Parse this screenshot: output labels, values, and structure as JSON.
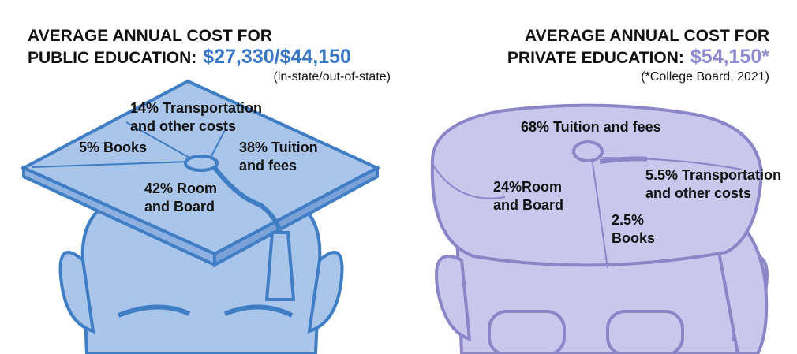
{
  "panels": [
    {
      "title": [
        "AVERAGE ANNUAL COST FOR",
        "PUBLIC EDUCATION:"
      ],
      "cost": "$27,330/$44,150",
      "note": "(in-state/out-of-state)",
      "segments": [
        {
          "lines": [
            "14% Transportation",
            "and other costs"
          ]
        },
        {
          "lines": [
            "5% Books"
          ]
        },
        {
          "lines": [
            "38% Tuition",
            "and fees"
          ]
        },
        {
          "lines": [
            "42% Room",
            "and Board"
          ]
        }
      ]
    },
    {
      "title": [
        "AVERAGE ANNUAL COST FOR",
        "PRIVATE EDUCATION:"
      ],
      "cost": "$54,150*",
      "note": "(*College Board, 2021)",
      "segments": [
        {
          "lines": [
            "68% Tuition and fees"
          ]
        },
        {
          "lines": [
            "24%Room",
            "and Board"
          ]
        },
        {
          "lines": [
            "5.5% Transportation",
            "and other costs"
          ]
        },
        {
          "lines": [
            "2.5%",
            "Books"
          ]
        }
      ]
    }
  ]
}
